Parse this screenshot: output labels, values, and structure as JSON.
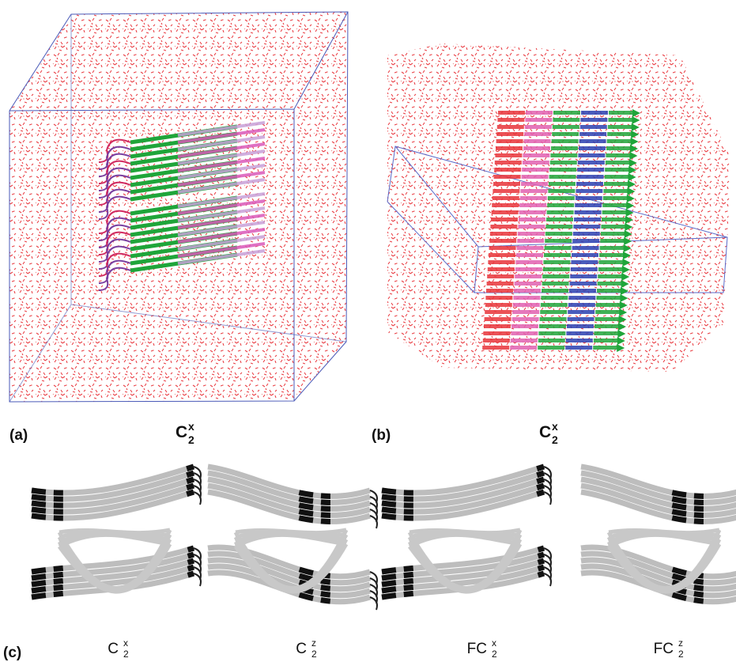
{
  "panels": [
    {
      "label": "(a)",
      "symbol": {
        "base": "C",
        "sup": "x",
        "sub": "2"
      }
    },
    {
      "label": "(b)",
      "symbol": {
        "base": "C",
        "sup": "x",
        "sub": "2"
      }
    },
    {
      "label": "(c)",
      "symbols": [
        {
          "base": "C",
          "sup": "x",
          "sub": "2"
        },
        {
          "base": "C",
          "sup": "z",
          "sub": "2"
        },
        {
          "base": "FC",
          "sup": "x",
          "sub": "2"
        },
        {
          "base": "FC",
          "sup": "z",
          "sub": "2"
        }
      ]
    }
  ]
}
